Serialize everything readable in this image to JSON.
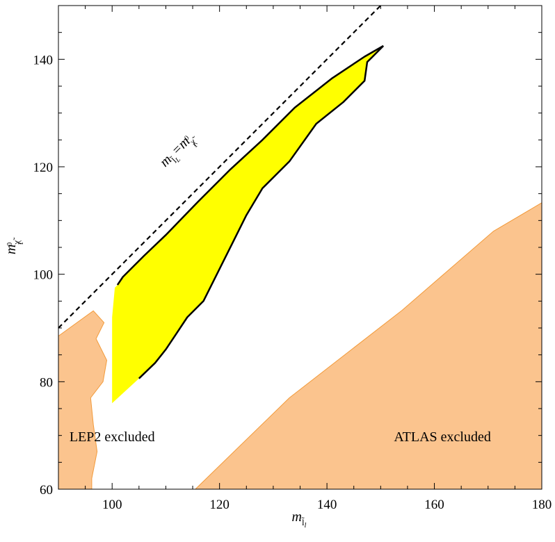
{
  "chart_data": {
    "type": "area",
    "xlim": [
      90,
      180
    ],
    "ylim": [
      60,
      150
    ],
    "xticks": [
      100,
      120,
      140,
      160,
      180
    ],
    "yticks": [
      60,
      80,
      100,
      120,
      140
    ],
    "xlabel": {
      "symbol": "m",
      "sub": "l̃",
      "subsub": "l"
    },
    "ylabel": {
      "symbol": "m",
      "sub": "χ̃",
      "sup": "0",
      "subsub": "1"
    },
    "grid": false,
    "colors": {
      "excluded_fill": "#fbc48e",
      "excluded_edge": "#f29a3a",
      "allowed_fill": "#ffff00",
      "allowed_edge": "#000000",
      "diagonal": "#000000"
    },
    "series": [
      {
        "region": "LEP2",
        "label": "LEP2 excluded",
        "label_at": [
          100,
          69.5
        ],
        "style": "excluded",
        "points": [
          [
            90,
            88.5
          ],
          [
            96.5,
            93.2
          ],
          [
            98.5,
            91
          ],
          [
            97,
            88
          ],
          [
            99,
            84
          ],
          [
            98.3,
            80
          ],
          [
            96,
            77
          ],
          [
            96.5,
            72
          ],
          [
            97.2,
            67
          ],
          [
            96.2,
            62
          ],
          [
            96.2,
            60
          ],
          [
            90,
            60
          ]
        ]
      },
      {
        "region": "ATLAS",
        "label": "ATLAS excluded",
        "label_at": [
          161.5,
          69.5
        ],
        "style": "excluded",
        "points": [
          [
            115.5,
            60
          ],
          [
            133,
            77
          ],
          [
            154,
            93.3
          ],
          [
            171,
            108
          ],
          [
            180,
            113.3
          ],
          [
            180,
            60
          ]
        ]
      },
      {
        "region": "allowed",
        "style": "allowed",
        "upper_edge": [
          [
            101,
            98
          ],
          [
            102,
            99.5
          ],
          [
            106,
            103.5
          ],
          [
            110,
            107.3
          ],
          [
            116,
            113.5
          ],
          [
            122,
            119.5
          ],
          [
            128,
            125
          ],
          [
            134,
            131
          ],
          [
            141,
            136.5
          ],
          [
            147,
            140.5
          ],
          [
            150.5,
            142.5
          ]
        ],
        "lower_edge": [
          [
            150.5,
            142.5
          ],
          [
            148.5,
            140.5
          ],
          [
            147.5,
            139.5
          ],
          [
            147,
            136
          ],
          [
            143,
            132
          ],
          [
            138,
            128
          ],
          [
            133,
            121
          ],
          [
            128,
            116
          ],
          [
            125,
            111
          ],
          [
            122.5,
            106
          ],
          [
            120,
            101
          ],
          [
            118,
            97
          ],
          [
            117,
            95
          ],
          [
            114,
            92
          ],
          [
            112,
            89
          ],
          [
            110,
            86
          ],
          [
            108,
            83.5
          ],
          [
            105,
            80.6
          ]
        ],
        "yellow_extra": [
          [
            105,
            80.6
          ],
          [
            100,
            76
          ],
          [
            100,
            92
          ],
          [
            100.5,
            97.5
          ]
        ]
      }
    ],
    "diagonal": {
      "from": [
        90,
        90
      ],
      "to": [
        150,
        150
      ],
      "style": "dashed",
      "label": {
        "main": "m",
        "sub_a": "l̃",
        "sub_b": "L",
        "eq": "=m",
        "sub_c": "χ̃",
        "sup_c": "0",
        "sub_d": "1"
      }
    }
  }
}
